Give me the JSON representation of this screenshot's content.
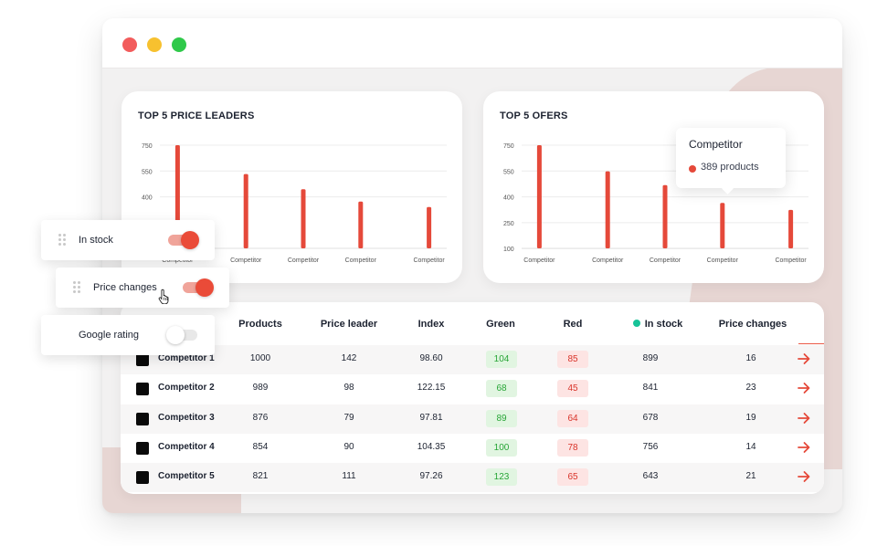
{
  "window": {
    "controls": [
      {
        "name": "close",
        "color": "#f25c5c"
      },
      {
        "name": "minimize",
        "color": "#f7c12f"
      },
      {
        "name": "maximize",
        "color": "#2fc94a"
      }
    ]
  },
  "colors": {
    "accent": "#e5493a",
    "green": "#27a536",
    "in_stock_dot": "#17c398"
  },
  "charts": {
    "leaders": {
      "title": "TOP 5 PRICE LEADERS"
    },
    "offers": {
      "title": "TOP 5 OFERS"
    }
  },
  "chart_data": [
    {
      "type": "bar",
      "title": "TOP 5 PRICE LEADERS",
      "y_ticks": [
        750,
        550,
        400
      ],
      "categories": [
        "Competitor",
        "Competitor",
        "Competitor",
        "Competitor",
        "Competitor"
      ],
      "values": [
        750,
        540,
        430,
        340,
        300
      ],
      "ylim": [
        0,
        750
      ],
      "grid": true
    },
    {
      "type": "bar",
      "title": "TOP 5 OFERS",
      "y_ticks": [
        750,
        550,
        400,
        250,
        100
      ],
      "categories": [
        "Competitor",
        "Competitor",
        "Competitor",
        "Competitor",
        "Competitor"
      ],
      "values": [
        750,
        560,
        460,
        330,
        280
      ],
      "grid": true
    }
  ],
  "tooltip": {
    "title": "Competitor",
    "value": "389 products",
    "color": "#e5493a"
  },
  "table": {
    "headers": {
      "products": "Products",
      "price_leader": "Price leader",
      "index": "Index",
      "green": "Green",
      "red": "Red",
      "in_stock": "In stock",
      "price_changes": "Price changes"
    },
    "rows": [
      {
        "name": "Competitor 1",
        "products": "1000",
        "price_leader": "142",
        "index": "98.60",
        "green": "104",
        "red": "85",
        "in_stock": "899",
        "price_changes": "16"
      },
      {
        "name": "Competitor 2",
        "products": "989",
        "price_leader": "98",
        "index": "122.15",
        "green": "68",
        "red": "45",
        "in_stock": "841",
        "price_changes": "23"
      },
      {
        "name": "Competitor 3",
        "products": "876",
        "price_leader": "79",
        "index": "97.81",
        "green": "89",
        "red": "64",
        "in_stock": "678",
        "price_changes": "19"
      },
      {
        "name": "Competitor 4",
        "products": "854",
        "price_leader": "90",
        "index": "104.35",
        "green": "100",
        "red": "78",
        "in_stock": "756",
        "price_changes": "14"
      },
      {
        "name": "Competitor 5",
        "products": "821",
        "price_leader": "111",
        "index": "97.26",
        "green": "123",
        "red": "65",
        "in_stock": "643",
        "price_changes": "21"
      }
    ]
  },
  "column_panel": {
    "items": [
      {
        "label": "In stock",
        "enabled": true
      },
      {
        "label": "Price changes",
        "enabled": true
      },
      {
        "label": "Google rating",
        "enabled": false
      }
    ]
  }
}
